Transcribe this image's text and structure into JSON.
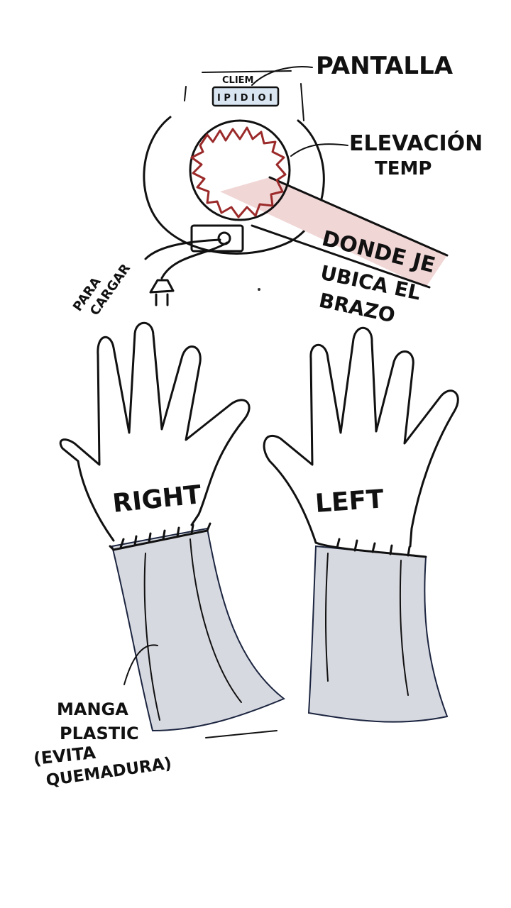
{
  "device": {
    "screen_brand": "CLIEM",
    "screen_display": "I P I D I O I",
    "labels": {
      "screen": "PANTALLA",
      "heat_line1": "ELEVACIÓN",
      "heat_line2": "TEMP",
      "place_line1": "DONDE JE",
      "place_line2": "UBICA EL",
      "place_line3": "BRAZO",
      "charge_line1": "PARA",
      "charge_line2": "CARGAR"
    }
  },
  "hands": {
    "right": "RIGHT",
    "left": "LEFT"
  },
  "sleeve": {
    "line1": "MANGA",
    "line2": "PLASTIC",
    "line3": "(EVITA",
    "line4": "QUEMADURA)"
  },
  "colors": {
    "ink": "#111111",
    "heating_element": "#9b2a2a",
    "arm_band": "#f1d6d6",
    "screen_fill": "#d9e6f2",
    "sleeve_fill": "#d7d9e0"
  }
}
